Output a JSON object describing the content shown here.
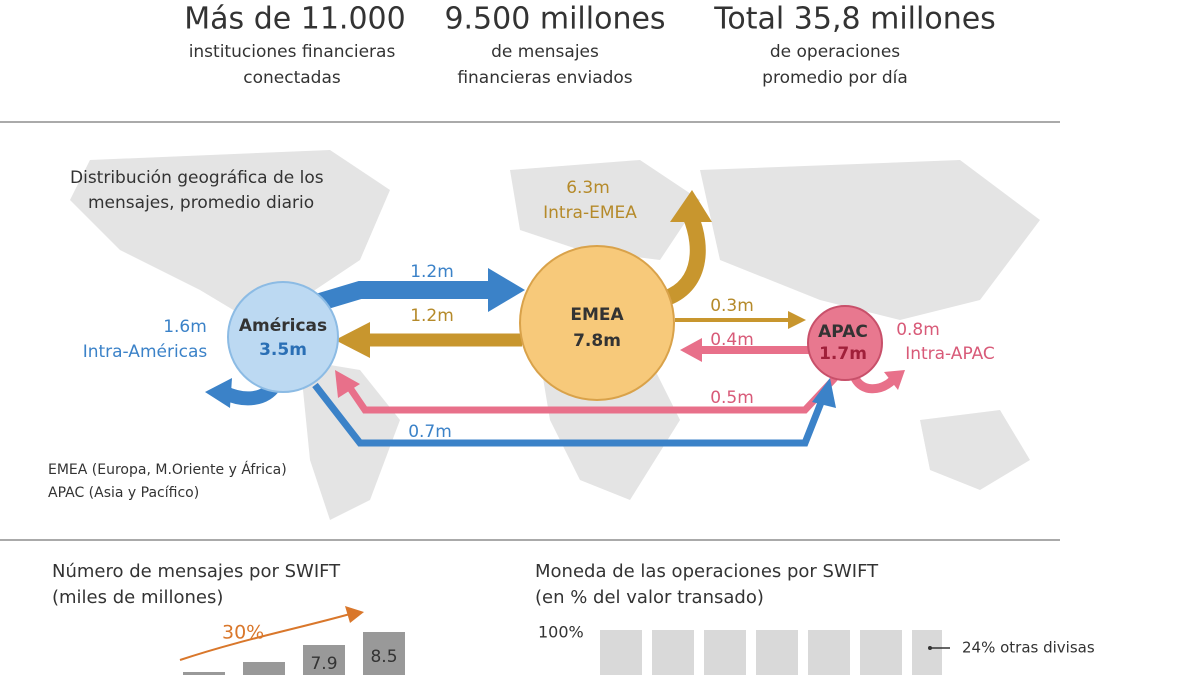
{
  "header": {
    "stats": [
      {
        "value": "Más de 11.000",
        "caption": [
          "instituciones financieras",
          "conectadas"
        ]
      },
      {
        "value": "9.500 millones",
        "caption": [
          "de mensajes",
          "financieras enviados"
        ]
      },
      {
        "value": "Total 35,8 millones",
        "caption": [
          "de operaciones",
          "promedio por día"
        ]
      }
    ]
  },
  "map": {
    "title": [
      "Distribución geográfica de los",
      "mensajes, promedio diario"
    ],
    "regions": [
      {
        "name": "Américas",
        "total": "3.5m"
      },
      {
        "name": "EMEA",
        "total": "7.8m"
      },
      {
        "name": "APAC",
        "total": "1.7m"
      }
    ],
    "intra": [
      {
        "value": "1.6m",
        "label": "Intra-Américas"
      },
      {
        "value": "6.3m",
        "label": "Intra-EMEA"
      },
      {
        "value": "0.8m",
        "label": "Intra-APAC"
      }
    ],
    "flows": [
      "1.2m",
      "1.2m",
      "0.3m",
      "0.4m",
      "0.5m",
      "0.7m"
    ],
    "notes": [
      "EMEA (Europa, M.Oriente y África)",
      "APAC (Asia y Pacífico)"
    ]
  },
  "messages_chart": {
    "title": [
      "Número de mensajes por SWIFT",
      "(miles de millones)"
    ],
    "growth": "30%",
    "bar_labels": [
      "7.9",
      "8.5"
    ]
  },
  "currency_chart": {
    "title": [
      "Moneda de las operaciones por SWIFT",
      "(en % del valor transado)"
    ],
    "axis_label": "100%",
    "legend": [
      "24% otras divisas"
    ]
  }
}
